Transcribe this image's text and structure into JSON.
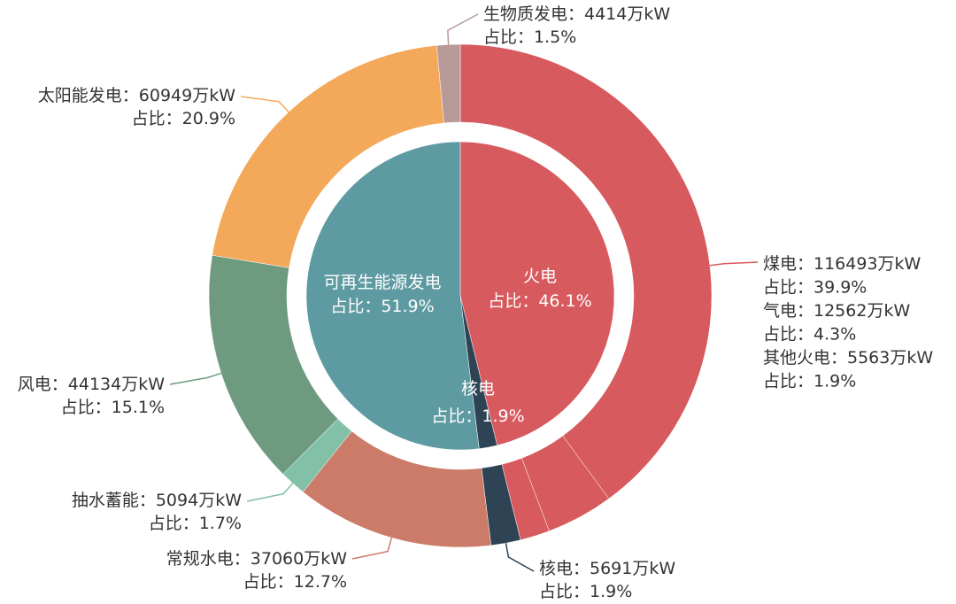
{
  "chart_data": {
    "type": "pie",
    "inner": [
      {
        "name": "火电",
        "value": 46.1,
        "color": "#d75a5e",
        "line1": "火电",
        "line2": "占比：46.1%"
      },
      {
        "name": "核电",
        "value": 1.9,
        "color": "#2e4454",
        "line1": "核电",
        "line2": "占比：1.9%"
      },
      {
        "name": "可再生能源发电",
        "value": 51.9,
        "color": "#5e9aa2",
        "line1": "可再生能源发电",
        "line2": "占比：51.9%"
      }
    ],
    "outer": [
      {
        "name": "煤电",
        "value": 39.9,
        "capacity": "116493万kW",
        "color": "#d75a5e",
        "labelGroup": "thermal"
      },
      {
        "name": "气电",
        "value": 4.3,
        "capacity": "12562万kW",
        "color": "#d75a5e",
        "labelGroup": "thermal"
      },
      {
        "name": "其他火电",
        "value": 1.9,
        "capacity": "5563万kW",
        "color": "#d75a5e",
        "labelGroup": "thermal"
      },
      {
        "name": "核电",
        "value": 1.9,
        "capacity": "5691万kW",
        "color": "#2e4454",
        "labelGroup": "nuclear"
      },
      {
        "name": "常规水电",
        "value": 12.7,
        "capacity": "37060万kW",
        "color": "#cc7b68",
        "labelGroup": "hydro"
      },
      {
        "name": "抽水蓄能",
        "value": 1.7,
        "capacity": "5094万kW",
        "color": "#82c0a8",
        "labelGroup": "pumped"
      },
      {
        "name": "风电",
        "value": 15.1,
        "capacity": "44134万kW",
        "color": "#6e9a80",
        "labelGroup": "wind"
      },
      {
        "name": "太阳能发电",
        "value": 20.9,
        "capacity": "60949万kW",
        "color": "#f3a85a",
        "labelGroup": "solar"
      },
      {
        "name": "生物质发电",
        "value": 1.5,
        "capacity": "4414万kW",
        "color": "#b89a99",
        "labelGroup": "bio"
      }
    ],
    "labels": {
      "thermal": [
        "煤电：116493万kW",
        "占比：39.9%",
        "气电：12562万kW",
        "占比：4.3%",
        "其他火电：5563万kW",
        "占比：1.9%"
      ],
      "nuclear": [
        "核电：5691万kW",
        "占比：1.9%"
      ],
      "hydro": [
        "常规水电：37060万kW",
        "占比：12.7%"
      ],
      "pumped": [
        "抽水蓄能：5094万kW",
        "占比：1.7%"
      ],
      "wind": [
        "风电：44134万kW",
        "占比：15.1%"
      ],
      "solar": [
        "太阳能发电：60949万kW",
        "占比：20.9%"
      ],
      "bio": [
        "生物质发电：4414万kW",
        "占比：1.5%"
      ]
    }
  }
}
